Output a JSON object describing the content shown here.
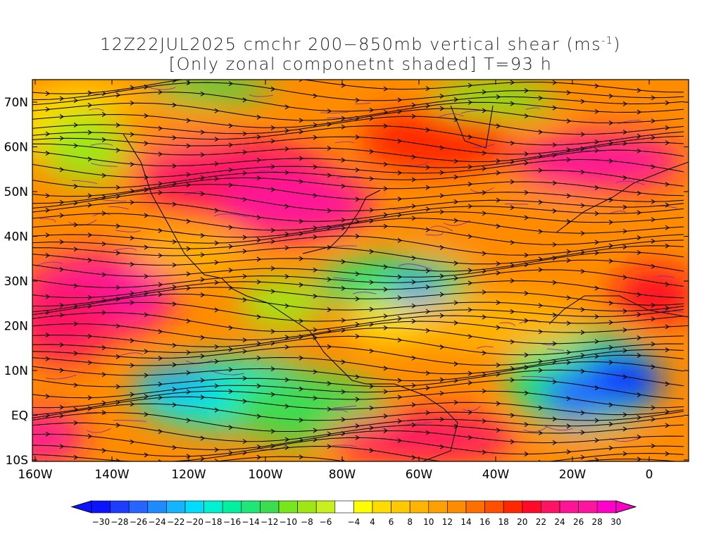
{
  "title": {
    "line1": "12Z22JUL2025 cmchr 200−850mb vertical shear (ms",
    "line1_sup": "-1",
    "line1_end": ")",
    "line2": "[Only zonal componetnt shaded] T=93 h"
  },
  "map": {
    "lat_labels": [
      "70N",
      "60N",
      "50N",
      "40N",
      "30N",
      "20N",
      "10N",
      "EQ",
      "10S"
    ],
    "lon_labels": [
      "160W",
      "140W",
      "120W",
      "100W",
      "80W",
      "60W",
      "40W",
      "20W",
      "0"
    ]
  },
  "colorbar": {
    "labels": [
      "−30",
      "−28",
      "−26",
      "−24",
      "−22",
      "−20",
      "−18",
      "−16",
      "−14",
      "−12",
      "−10",
      "−8",
      "−6",
      "−4",
      "4",
      "6",
      "8",
      "10",
      "12",
      "14",
      "16",
      "18",
      "20",
      "22",
      "24",
      "26",
      "28",
      "30"
    ],
    "colors": [
      "#0a14ff",
      "#1e3cff",
      "#2864ff",
      "#1e8cff",
      "#14b4ff",
      "#00dcff",
      "#00f0d2",
      "#00f0a0",
      "#1ee678",
      "#3cdc50",
      "#78e61e",
      "#a0e614",
      "#c8f01e",
      "#ffffff",
      "#ffff00",
      "#ffdc00",
      "#ffc800",
      "#ffb400",
      "#ffa000",
      "#ff8c00",
      "#ff6e00",
      "#ff5000",
      "#ff2800",
      "#ff0a28",
      "#ff1464",
      "#ff1496",
      "#ff14a0",
      "#ff00c8"
    ]
  }
}
